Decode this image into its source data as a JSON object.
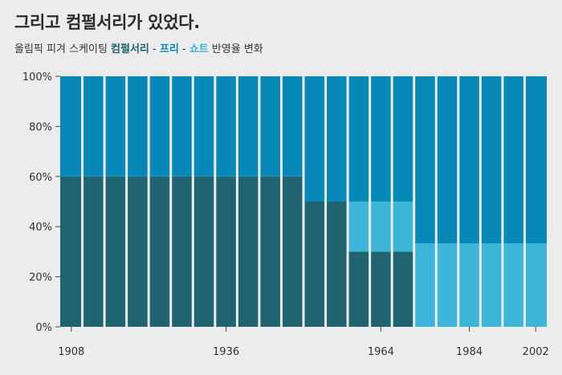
{
  "title": "그리고 컴펄서리가 있었다.",
  "subtitle": {
    "prefix": "올림픽 피겨 스케이팅 ",
    "compulsory": "컴펄서리",
    "sep1": " - ",
    "free": "프리",
    "sep2": " - ",
    "short": "쇼트",
    "suffix": " 반영율 변화"
  },
  "colors": {
    "compulsory": "#1f6470",
    "free": "#0688b9",
    "short": "#3cb5d8",
    "background": "#ececec",
    "separator": "#ececec"
  },
  "chart_data": {
    "type": "bar",
    "stacked": true,
    "x_ticks": [
      "1908",
      "1936",
      "1964",
      "1984",
      "2002"
    ],
    "y_ticks": [
      "0%",
      "20%",
      "40%",
      "60%",
      "80%",
      "100%"
    ],
    "ylim": [
      0,
      100
    ],
    "series": [
      {
        "name": "컴펄서리",
        "key": "compulsory",
        "values": [
          60,
          60,
          60,
          60,
          60,
          60,
          60,
          60,
          60,
          60,
          60,
          50,
          50,
          30,
          30,
          30,
          0,
          0,
          0,
          0,
          0,
          0
        ]
      },
      {
        "name": "쇼트",
        "key": "short",
        "values": [
          0,
          0,
          0,
          0,
          0,
          0,
          0,
          0,
          0,
          0,
          0,
          0,
          0,
          20,
          20,
          20,
          33.3,
          33.3,
          33.3,
          33.3,
          33.3,
          33.3
        ]
      },
      {
        "name": "프리",
        "key": "free",
        "values": [
          40,
          40,
          40,
          40,
          40,
          40,
          40,
          40,
          40,
          40,
          40,
          50,
          50,
          50,
          50,
          50,
          66.7,
          66.7,
          66.7,
          66.7,
          66.7,
          66.7
        ]
      }
    ]
  }
}
